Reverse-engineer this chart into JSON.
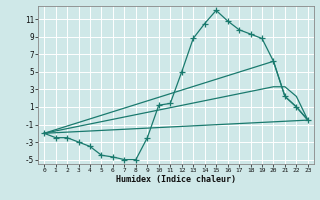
{
  "xlabel": "Humidex (Indice chaleur)",
  "background_color": "#cfe8e8",
  "grid_color": "#ffffff",
  "line_color": "#1a7a6e",
  "xlim": [
    -0.5,
    23.5
  ],
  "ylim": [
    -5.5,
    12.5
  ],
  "yticks": [
    -5,
    -3,
    -1,
    1,
    3,
    5,
    7,
    9,
    11
  ],
  "xticks": [
    0,
    1,
    2,
    3,
    4,
    5,
    6,
    7,
    8,
    9,
    10,
    11,
    12,
    13,
    14,
    15,
    16,
    17,
    18,
    19,
    20,
    21,
    22,
    23
  ],
  "series_main": [
    [
      0,
      -2
    ],
    [
      1,
      -2.5
    ],
    [
      2,
      -2.5
    ],
    [
      3,
      -3
    ],
    [
      4,
      -3.5
    ],
    [
      5,
      -4.5
    ],
    [
      6,
      -4.7
    ],
    [
      7,
      -5.0
    ],
    [
      8,
      -5.0
    ],
    [
      9,
      -2.5
    ],
    [
      10,
      1.2
    ],
    [
      11,
      1.4
    ],
    [
      12,
      5.0
    ],
    [
      13,
      8.8
    ],
    [
      14,
      10.5
    ],
    [
      15,
      12.0
    ],
    [
      16,
      10.8
    ],
    [
      17,
      9.8
    ],
    [
      18,
      9.3
    ],
    [
      19,
      8.8
    ],
    [
      20,
      6.2
    ],
    [
      21,
      2.2
    ],
    [
      22,
      1.0
    ],
    [
      23,
      -0.5
    ]
  ],
  "series_line1": [
    [
      0,
      -2
    ],
    [
      23,
      -0.5
    ]
  ],
  "series_line2": [
    [
      0,
      -2
    ],
    [
      20,
      3.3
    ],
    [
      21,
      3.3
    ],
    [
      22,
      2.2
    ],
    [
      23,
      -0.5
    ]
  ],
  "series_line3": [
    [
      0,
      -2
    ],
    [
      20,
      6.2
    ],
    [
      21,
      2.2
    ],
    [
      22,
      1.0
    ],
    [
      23,
      -0.5
    ]
  ]
}
